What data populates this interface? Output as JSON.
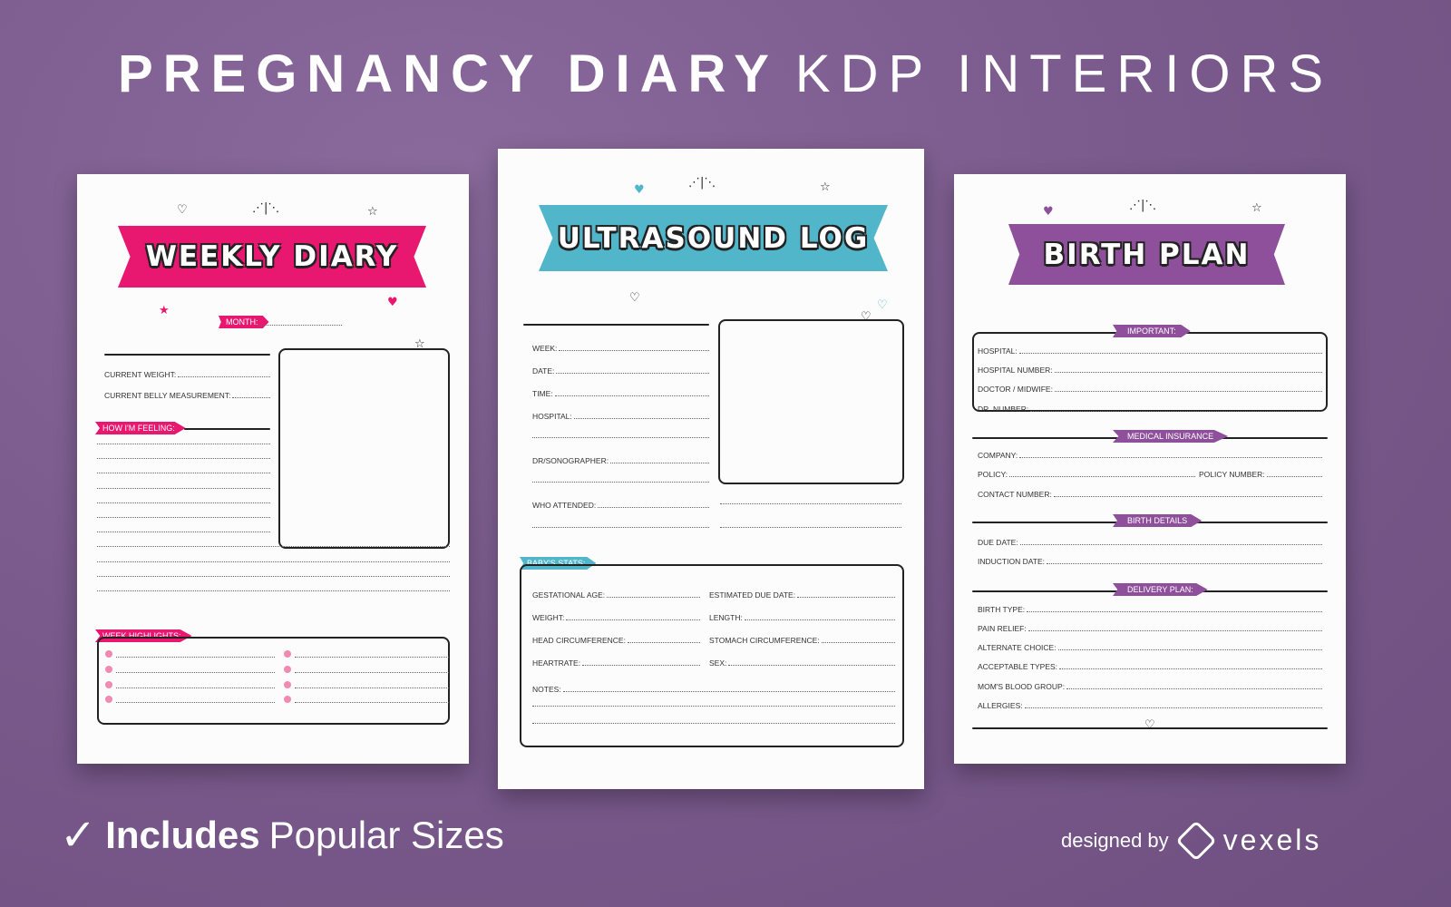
{
  "header": {
    "title_bold": "PREGNANCY DIARY",
    "title_light": "KDP INTERIORS"
  },
  "colors": {
    "background": "#7a5a8c",
    "pink": "#e8176f",
    "teal": "#52b6cb",
    "purple": "#8e4f9b"
  },
  "weekly": {
    "title": "WEEKLY DIARY",
    "month": "MONTH:",
    "fields": [
      "CURRENT WEIGHT:",
      "CURRENT BELLY MEASUREMENT:"
    ],
    "feeling": "HOW I'M FEELING:",
    "highlights": "WEEK HIGHLIGHTS:"
  },
  "ultrasound": {
    "title": "ULTRASOUND LOG",
    "fields": [
      "WEEK:",
      "DATE:",
      "TIME:",
      "HOSPITAL:",
      "DR/SONOGRAPHER:",
      "WHO ATTENDED:"
    ],
    "stats_label": "BABY'S STATS:",
    "stats_left": [
      "GESTATIONAL AGE:",
      "WEIGHT:",
      "HEAD CIRCUMFERENCE:",
      "HEARTRATE:"
    ],
    "stats_right": [
      "ESTIMATED DUE DATE:",
      "LENGTH:",
      "STOMACH CIRCUMFERENCE:",
      "SEX:"
    ],
    "notes": "NOTES:"
  },
  "birth": {
    "title": "BIRTH PLAN",
    "sections": [
      {
        "label": "IMPORTANT:",
        "fields": [
          "HOSPITAL:",
          "HOSPITAL NUMBER:",
          "DOCTOR / MIDWIFE:",
          "DR. NUMBER:"
        ]
      },
      {
        "label": "MEDICAL INSURANCE",
        "fields": [
          "COMPANY:",
          "POLICY:",
          "CONTACT NUMBER:"
        ],
        "extra": "POLICY NUMBER:"
      },
      {
        "label": "BIRTH DETAILS",
        "fields": [
          "DUE DATE:",
          "INDUCTION DATE:"
        ]
      },
      {
        "label": "DELIVERY PLAN:",
        "fields": [
          "BIRTH TYPE:",
          "PAIN RELIEF:",
          "ALTERNATE CHOICE:",
          "ACCEPTABLE TYPES:",
          "MOM'S BLOOD GROUP:",
          "ALLERGIES:"
        ]
      }
    ]
  },
  "footer": {
    "check_icon": "checkmark-icon",
    "includes": "Includes",
    "sizes": "Popular Sizes",
    "designed_by": "designed by",
    "brand": "vexels",
    "brand_icon": "vexels-logo-icon"
  }
}
